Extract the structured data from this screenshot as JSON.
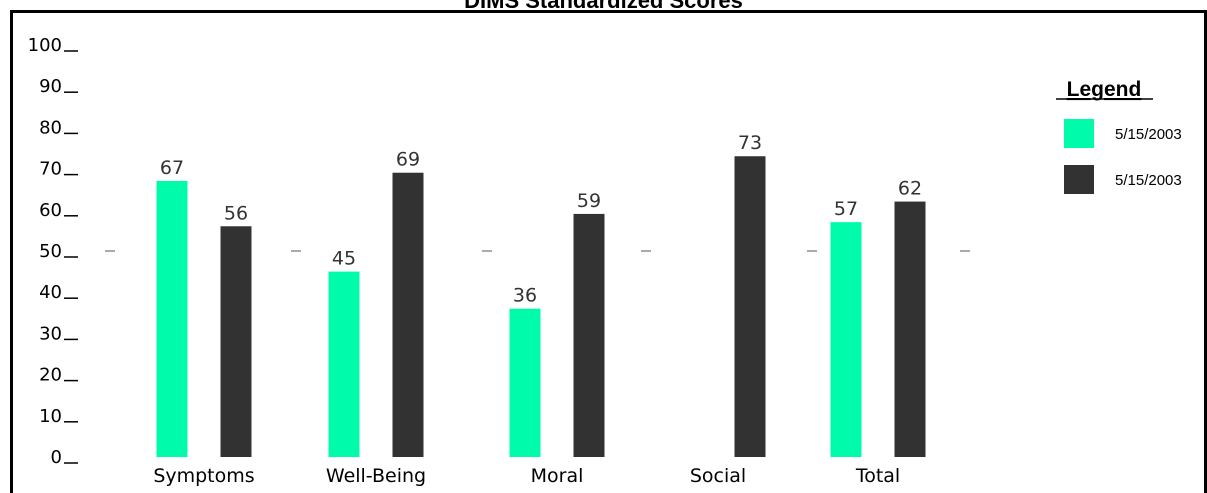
{
  "chart_data": {
    "type": "bar",
    "title": "DIMS Standardized Scores",
    "categories": [
      "Symptoms",
      "Well-Being",
      "Moral",
      "Social",
      "Total"
    ],
    "series": [
      {
        "name": "5/15/2003",
        "color": "#00fbab",
        "values": [
          67,
          45,
          36,
          null,
          57
        ]
      },
      {
        "name": "5/15/2003",
        "color": "#323232",
        "values": [
          56,
          69,
          59,
          73,
          62
        ]
      }
    ],
    "ylim": [
      0,
      100
    ],
    "yticks": [
      0,
      10,
      20,
      30,
      40,
      50,
      60,
      70,
      80,
      90,
      100
    ],
    "reference_value": 50,
    "legend": {
      "title": "Legend",
      "position": "right"
    },
    "xlabel": "",
    "ylabel": ""
  }
}
